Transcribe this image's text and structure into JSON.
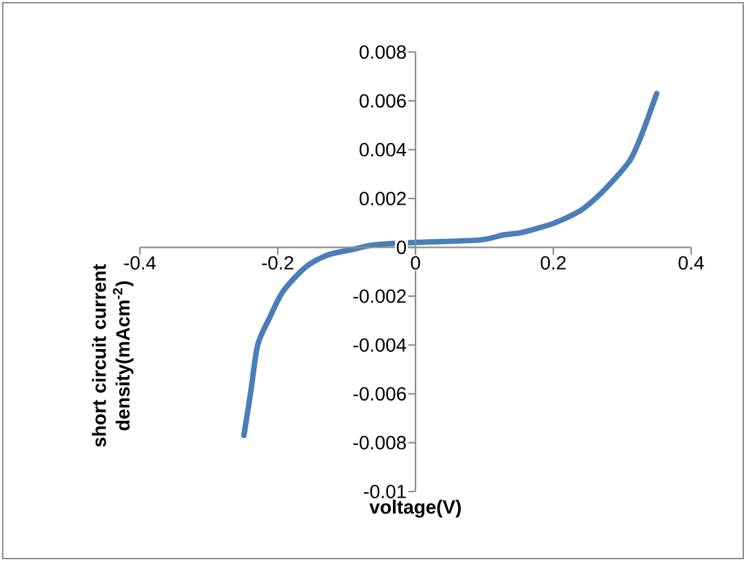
{
  "chart_data": {
    "type": "line",
    "xlabel": "voltage(V)",
    "ylabel": "short circuit current density(mAcm$^{-2}$)",
    "series": [
      {
        "color": "#4a7ebb",
        "x": [
          -0.249,
          -0.239,
          -0.229,
          -0.212,
          -0.192,
          -0.159,
          -0.126,
          -0.093,
          -0.06,
          0,
          0.093,
          0.126,
          0.153,
          0.179,
          0.202,
          0.239,
          0.265,
          0.292,
          0.312,
          0.328,
          0.35
        ],
        "values": [
          -0.0077,
          -0.0059,
          -0.004,
          -0.0029,
          -0.0018,
          -0.0008,
          -0.0003,
          -0.0001,
          0.0001,
          0.0002,
          0.0003,
          0.0005,
          0.0006,
          0.0008,
          0.001,
          0.0015,
          0.0021,
          0.0029,
          0.0036,
          0.0046,
          0.0063
        ]
      }
    ],
    "xlim": [
      -0.4,
      0.4
    ],
    "ylim": [
      -0.01,
      0.008
    ],
    "xticks": [
      -0.4,
      -0.2,
      0,
      0.2,
      0.4
    ],
    "yticks": [
      -0.01,
      -0.008,
      -0.006,
      -0.004,
      -0.002,
      0,
      0.002,
      0.004,
      0.006,
      0.008
    ],
    "marker": "none",
    "line_style": "solid"
  }
}
